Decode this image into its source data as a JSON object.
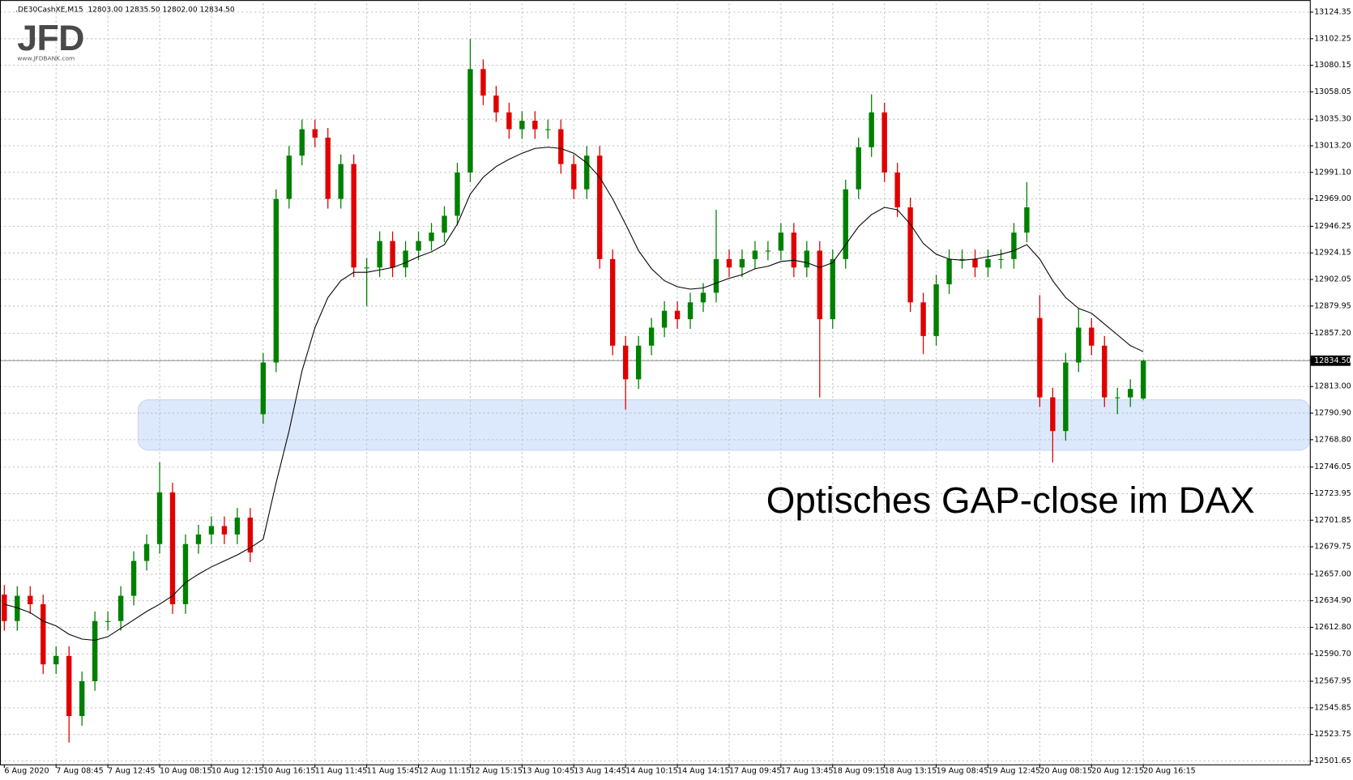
{
  "chart_data": {
    "type": "candlestick",
    "header": ".DE30CashXE,M15  12803.00 12835.50 12802.00 12834.50",
    "logo": "JFD",
    "logo_url": "www.JFDBANK.com",
    "annotation": "Optisches GAP-close im DAX",
    "up_color": "#008000",
    "down_color": "#e00000",
    "grid": true,
    "ylim": [
      12498.8,
      13131.5
    ],
    "yticks": [
      13124.35,
      13102.25,
      13080.15,
      13058.05,
      {
        "value": 13035.3,
        "label": "13035.30"
      },
      {
        "value": 13013.2,
        "label": "13013.20"
      },
      {
        "value": 12991.1,
        "label": "12991.10"
      },
      {
        "value": 12969,
        "label": "12969.00"
      },
      12946.25,
      12924.15,
      12902.05,
      12879.95,
      {
        "value": 12857.2,
        "label": "12857.20"
      },
      {
        "value": 12835.1,
        "label": "12835.10"
      },
      {
        "value": 12813,
        "label": "12813.00"
      },
      {
        "value": 12790.9,
        "label": "12790.90"
      },
      {
        "value": 12768.8,
        "label": "12768.80"
      },
      12746.05,
      12723.95,
      12701.85,
      12679.75,
      {
        "value": 12657,
        "label": "12657.00"
      },
      {
        "value": 12634.9,
        "label": "12634.90"
      },
      {
        "value": 12612.8,
        "label": "12612.80"
      },
      {
        "value": 12590.7,
        "label": "12590.70"
      },
      12567.95,
      12545.85,
      12523.75,
      12501.65
    ],
    "last_price": {
      "value": 12834.5,
      "label": "12834.50"
    },
    "zone": {
      "range": [
        12760,
        12802
      ],
      "color": "#dce8fb"
    },
    "categories": [
      "6 Aug 2020",
      null,
      null,
      null,
      "7 Aug 08:45",
      null,
      null,
      null,
      "7 Aug 12:45",
      null,
      null,
      null,
      "10 Aug 08:15",
      null,
      null,
      null,
      "10 Aug 12:15",
      null,
      null,
      null,
      "10 Aug 16:15",
      null,
      null,
      null,
      "11 Aug 11:45",
      null,
      null,
      null,
      "11 Aug 15:45",
      null,
      null,
      null,
      "12 Aug 11:15",
      null,
      null,
      null,
      "12 Aug 15:15",
      null,
      null,
      null,
      "13 Aug 10:45",
      null,
      null,
      null,
      "13 Aug 14:45",
      null,
      null,
      null,
      "14 Aug 10:15",
      null,
      null,
      null,
      "14 Aug 14:15",
      null,
      null,
      null,
      "17 Aug 09:45",
      null,
      null,
      null,
      "17 Aug 13:45",
      null,
      null,
      null,
      "18 Aug 09:15",
      null,
      null,
      null,
      "18 Aug 13:15",
      null,
      null,
      null,
      "19 Aug 08:45",
      null,
      null,
      null,
      "19 Aug 12:45",
      null,
      null,
      null,
      "20 Aug 08:15",
      null,
      null,
      null,
      "20 Aug 12:15",
      null,
      null,
      null,
      "20 Aug 16:15"
    ],
    "open": [
      12640,
      12618,
      12639,
      12632,
      12582,
      12589,
      12539,
      12568,
      12618,
      12618,
      12639,
      12668,
      12682,
      12725,
      12632,
      12682,
      12690,
      12697,
      12690,
      12704,
      12790,
      12833,
      12969,
      13005,
      13027,
      13020,
      12969,
      12998,
      12912,
      12912,
      12934,
      12912,
      12926,
      12934,
      12941,
      12955,
      12991,
      13077,
      13055,
      13041,
      13027,
      13034,
      13027,
      13027,
      12998,
      12977,
      13005,
      12919,
      12847,
      12819,
      12847,
      12862,
      12876,
      12869,
      12883,
      12891,
      12919,
      12912,
      12919,
      12926,
      12926,
      12941,
      12912,
      12926,
      12869,
      12919,
      12977,
      13012,
      13041,
      12991,
      12962,
      12883,
      12855,
      12898,
      12919,
      12919,
      12912,
      12919,
      12919,
      12941,
      12870,
      12804,
      12776,
      12833,
      12862,
      12847,
      12804,
      12804,
      12803
    ],
    "high": [
      12648,
      12647,
      12647,
      12640,
      12597,
      12597,
      12576,
      12626,
      12626,
      12647,
      12676,
      12690,
      12750,
      12733,
      12690,
      12698,
      12705,
      12705,
      12712,
      12712,
      12841,
      12977,
      13013,
      13035,
      13035,
      13028,
      13006,
      13006,
      12920,
      12942,
      12942,
      12934,
      12942,
      12949,
      12963,
      12999,
      13102,
      13085,
      13063,
      13049,
      13042,
      13042,
      13035,
      13035,
      13006,
      13013,
      13013,
      12927,
      12855,
      12855,
      12870,
      12884,
      12884,
      12891,
      12899,
      12960,
      12927,
      12927,
      12934,
      12934,
      12949,
      12949,
      12934,
      12934,
      12927,
      12985,
      13020,
      13056,
      13049,
      12999,
      12970,
      12891,
      12906,
      12927,
      12927,
      12927,
      12927,
      12927,
      12949,
      12983,
      12889,
      12812,
      12841,
      12878,
      12870,
      12855,
      12812,
      12819,
      12835.5
    ],
    "low": [
      12610,
      12610,
      12624,
      12574,
      12574,
      12517,
      12531,
      12560,
      12610,
      12610,
      12631,
      12660,
      12674,
      12624,
      12624,
      12674,
      12682,
      12682,
      12682,
      12667,
      12782,
      12825,
      12961,
      12997,
      13012,
      12961,
      12961,
      12904,
      12880,
      12904,
      12904,
      12904,
      12918,
      12926,
      12933,
      12947,
      12983,
      13047,
      13033,
      13019,
      13019,
      13019,
      13019,
      12990,
      12969,
      12969,
      12911,
      12839,
      12794,
      12811,
      12839,
      12854,
      12861,
      12861,
      12875,
      12883,
      12904,
      12904,
      12911,
      12918,
      12918,
      12904,
      12904,
      12804,
      12861,
      12911,
      12969,
      13004,
      12983,
      12954,
      12875,
      12840,
      12847,
      12890,
      12911,
      12904,
      12904,
      12911,
      12911,
      12933,
      12796,
      12750,
      12768,
      12825,
      12839,
      12796,
      12790,
      12796,
      12802
    ],
    "close": [
      12618,
      12639,
      12632,
      12582,
      12589,
      12539,
      12568,
      12618,
      12618,
      12639,
      12668,
      12682,
      12725,
      12632,
      12682,
      12690,
      12697,
      12690,
      12704,
      12675,
      12833,
      12969,
      13005,
      13027,
      13020,
      12969,
      12998,
      12912,
      12912,
      12934,
      12912,
      12926,
      12934,
      12941,
      12955,
      12991,
      13077,
      13055,
      13041,
      13027,
      13034,
      13027,
      13027,
      12998,
      12977,
      13005,
      12919,
      12847,
      12819,
      12847,
      12862,
      12876,
      12869,
      12883,
      12891,
      12919,
      12912,
      12919,
      12926,
      12926,
      12941,
      12912,
      12926,
      12869,
      12919,
      12977,
      13012,
      13041,
      12991,
      12962,
      12883,
      12855,
      12898,
      12919,
      12919,
      12912,
      12919,
      12919,
      12941,
      12962,
      12804,
      12776,
      12833,
      12862,
      12847,
      12804,
      12804,
      12811,
      12834.5
    ],
    "ma": {
      "color": "#000000",
      "values": [
        12632,
        12629,
        12625,
        12618,
        12614,
        12607,
        12603,
        12602,
        12605,
        12612,
        12619,
        12626,
        12632,
        12639,
        12650,
        12657,
        12663,
        12668,
        12673,
        12679,
        12686,
        12733,
        12776,
        12826,
        12862,
        12887,
        12901,
        12908,
        12908,
        12910,
        12912,
        12916,
        12921,
        12925,
        12931,
        12948,
        12973,
        12987,
        12996,
        13002,
        13007,
        13011,
        13012,
        13011,
        13007,
        12999,
        12987,
        12969,
        12948,
        12926,
        12911,
        12901,
        12896,
        12894,
        12895,
        12899,
        12903,
        12906,
        12911,
        12913,
        12917,
        12918,
        12916,
        12912,
        12916,
        12931,
        12946,
        12956,
        12962,
        12960,
        12948,
        12932,
        12923,
        12919,
        12918,
        12919,
        12921,
        12923,
        12926,
        12931,
        12919,
        12901,
        12887,
        12878,
        12874,
        12865,
        12856,
        12847,
        12842
      ]
    }
  }
}
